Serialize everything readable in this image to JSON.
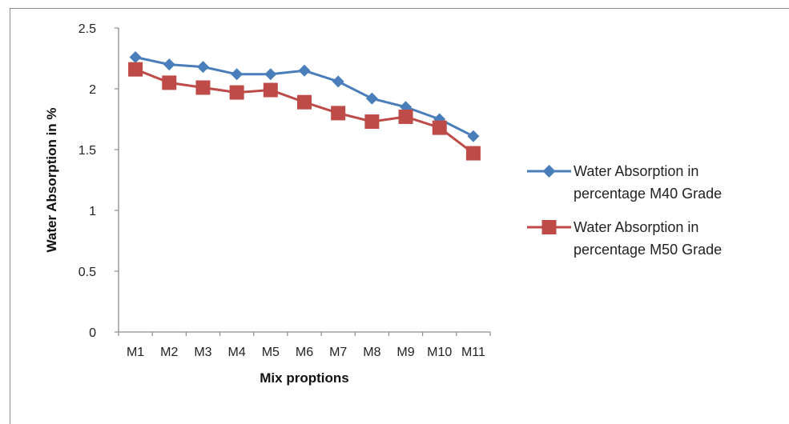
{
  "chart_data": {
    "type": "line",
    "title": "",
    "xlabel": "Mix proptions",
    "ylabel": "Water Absorption  in %",
    "categories": [
      "M1",
      "M2",
      "M3",
      "M4",
      "M5",
      "M6",
      "M7",
      "M8",
      "M9",
      "M10",
      "M11"
    ],
    "ylim": [
      0,
      2.5
    ],
    "yticks": [
      "0",
      "0.5",
      "1",
      "1.5",
      "2",
      "2.5"
    ],
    "grid": false,
    "legend_position": "right",
    "series": [
      {
        "name_lines": [
          "Water Absorption in",
          "percentage M40 Grade"
        ],
        "color": "#4a7ebb",
        "marker": "diamond",
        "values": [
          2.26,
          2.2,
          2.18,
          2.12,
          2.12,
          2.15,
          2.06,
          1.92,
          1.85,
          1.75,
          1.61
        ]
      },
      {
        "name_lines": [
          "Water Absorption in",
          "percentage M50 Grade"
        ],
        "color": "#be4b48",
        "marker": "square",
        "values": [
          2.16,
          2.05,
          2.01,
          1.97,
          1.99,
          1.89,
          1.8,
          1.73,
          1.77,
          1.68,
          1.47
        ]
      }
    ]
  }
}
